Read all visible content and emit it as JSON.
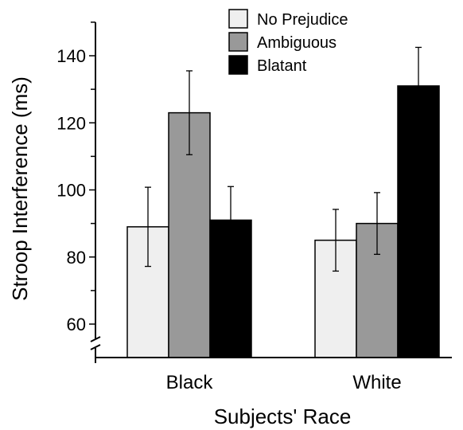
{
  "chart_data": {
    "type": "bar",
    "categories": [
      "Black",
      "White"
    ],
    "series": [
      {
        "name": "No Prejudice",
        "values": [
          89,
          85
        ],
        "errors": [
          11.8,
          9.2
        ],
        "color": "#efefef"
      },
      {
        "name": "Ambiguous",
        "values": [
          123,
          90
        ],
        "errors": [
          12.5,
          9.2
        ],
        "color": "#999999"
      },
      {
        "name": "Blatant",
        "values": [
          91,
          131
        ],
        "errors": [
          10,
          11.5
        ],
        "color": "#000000"
      }
    ],
    "xlabel": "Subjects' Race",
    "ylabel": "Stroop Interference (ms)",
    "ylim": [
      50,
      150
    ],
    "yticks": [
      "60",
      "80",
      "100",
      "120",
      "140"
    ],
    "axis_break": true,
    "grid": false,
    "legend_position": "top-center"
  }
}
